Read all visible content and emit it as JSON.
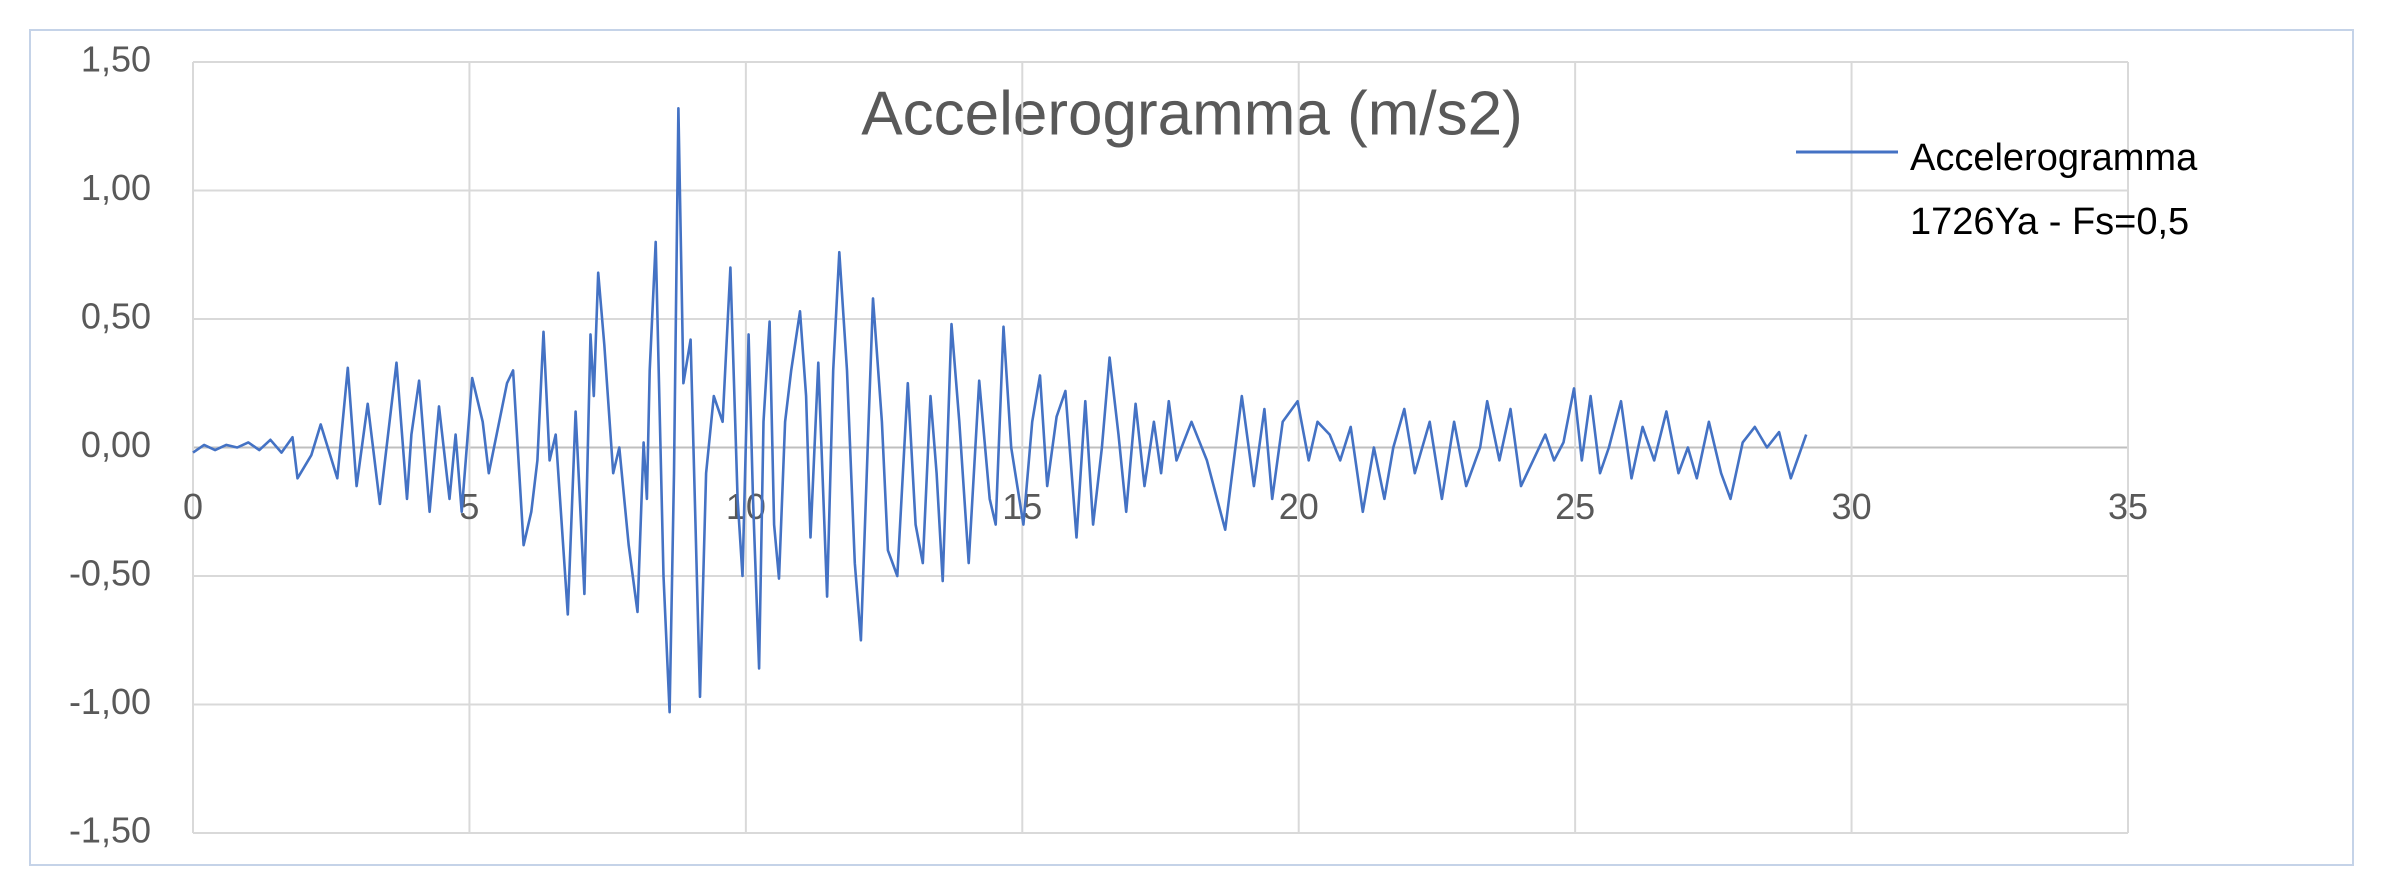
{
  "chart_data": {
    "type": "line",
    "title": "Accelerogramma (m/s2)",
    "legend": "right",
    "grid": true,
    "xlim": [
      0,
      35
    ],
    "xticks": [
      0,
      5,
      10,
      15,
      20,
      25,
      30,
      35
    ],
    "ylim": [
      -1.5,
      1.5
    ],
    "yticks": [
      {
        "value": -1.5,
        "label": "-1,50"
      },
      {
        "value": -1.0,
        "label": "-1,00"
      },
      {
        "value": -0.5,
        "label": "-0,50"
      },
      {
        "value": 0,
        "label": "0,00"
      },
      {
        "value": 0.5,
        "label": "0,50"
      },
      {
        "value": 1.0,
        "label": "1,00"
      },
      {
        "value": 1.5,
        "label": "1,50"
      }
    ],
    "x": [
      0,
      0.2,
      0.4,
      0.6,
      0.8,
      1.0,
      1.2,
      1.4,
      1.6,
      1.8,
      1.89,
      2.14,
      2.31,
      2.61,
      2.8,
      2.96,
      3.16,
      3.38,
      3.68,
      3.87,
      3.95,
      4.09,
      4.28,
      4.45,
      4.64,
      4.75,
      4.86,
      5.05,
      5.24,
      5.35,
      5.68,
      5.79,
      5.98,
      6.12,
      6.23,
      6.34,
      6.45,
      6.56,
      6.78,
      6.92,
      7.08,
      7.19,
      7.25,
      7.33,
      7.44,
      7.6,
      7.71,
      7.88,
      8.04,
      8.15,
      8.21,
      8.26,
      8.37,
      8.51,
      8.62,
      8.7,
      8.78,
      8.87,
      9.0,
      9.09,
      9.17,
      9.28,
      9.42,
      9.58,
      9.72,
      9.85,
      9.94,
      10.05,
      10.13,
      10.24,
      10.32,
      10.43,
      10.51,
      10.6,
      10.71,
      10.82,
      10.98,
      11.09,
      11.17,
      11.31,
      11.47,
      11.58,
      11.69,
      11.83,
      11.97,
      12.08,
      12.22,
      12.3,
      12.46,
      12.57,
      12.74,
      12.93,
      13.07,
      13.2,
      13.34,
      13.45,
      13.56,
      13.72,
      13.86,
      14.03,
      14.22,
      14.41,
      14.52,
      14.66,
      14.8,
      15.02,
      15.18,
      15.32,
      15.45,
      15.62,
      15.78,
      15.98,
      16.14,
      16.28,
      16.44,
      16.58,
      16.74,
      16.88,
      17.05,
      17.21,
      17.38,
      17.51,
      17.65,
      17.79,
      18.06,
      18.34,
      18.67,
      18.97,
      19.19,
      19.38,
      19.52,
      19.71,
      19.98,
      20.18,
      20.34,
      20.56,
      20.75,
      20.94,
      21.16,
      21.36,
      21.55,
      21.71,
      21.91,
      22.1,
      22.37,
      22.59,
      22.81,
      23.03,
      23.28,
      23.41,
      23.63,
      23.83,
      24.02,
      24.24,
      24.46,
      24.62,
      24.79,
      24.98,
      25.12,
      25.28,
      25.45,
      25.61,
      25.83,
      26.02,
      26.22,
      26.43,
      26.65,
      26.87,
      27.04,
      27.2,
      27.42,
      27.64,
      27.81,
      28.03,
      28.25,
      28.47,
      28.69,
      28.9,
      29.18
    ],
    "series": [
      {
        "name": "Accelerogramma 1726Ya - Fs=0,5",
        "color": "#4472c4",
        "values": [
          -0.02,
          0.01,
          -0.01,
          0.01,
          0.0,
          0.02,
          -0.01,
          0.03,
          -0.02,
          0.04,
          -0.12,
          -0.03,
          0.09,
          -0.12,
          0.31,
          -0.15,
          0.17,
          -0.22,
          0.33,
          -0.2,
          0.05,
          0.26,
          -0.25,
          0.16,
          -0.2,
          0.05,
          -0.25,
          0.27,
          0.1,
          -0.1,
          0.25,
          0.3,
          -0.38,
          -0.25,
          -0.05,
          0.45,
          -0.05,
          0.05,
          -0.65,
          0.14,
          -0.57,
          0.44,
          0.2,
          0.68,
          0.4,
          -0.1,
          0.0,
          -0.38,
          -0.64,
          0.02,
          -0.2,
          0.3,
          0.8,
          -0.5,
          -1.03,
          -0.1,
          1.32,
          0.25,
          0.42,
          -0.3,
          -0.97,
          -0.1,
          0.2,
          0.1,
          0.7,
          -0.2,
          -0.5,
          0.44,
          -0.2,
          -0.86,
          0.1,
          0.49,
          -0.3,
          -0.51,
          0.1,
          0.3,
          0.53,
          0.2,
          -0.35,
          0.33,
          -0.58,
          0.3,
          0.76,
          0.3,
          -0.45,
          -0.75,
          0.1,
          0.58,
          0.1,
          -0.4,
          -0.5,
          0.25,
          -0.3,
          -0.45,
          0.2,
          -0.1,
          -0.52,
          0.48,
          0.1,
          -0.45,
          0.26,
          -0.2,
          -0.3,
          0.47,
          0.0,
          -0.3,
          0.1,
          0.28,
          -0.15,
          0.12,
          0.22,
          -0.35,
          0.18,
          -0.3,
          0.0,
          0.35,
          0.05,
          -0.25,
          0.17,
          -0.15,
          0.1,
          -0.1,
          0.18,
          -0.05,
          0.1,
          -0.05,
          -0.32,
          0.2,
          -0.15,
          0.15,
          -0.2,
          0.1,
          0.18,
          -0.05,
          0.1,
          0.05,
          -0.05,
          0.08,
          -0.25,
          0.0,
          -0.2,
          0.0,
          0.15,
          -0.1,
          0.1,
          -0.2,
          0.1,
          -0.15,
          0.0,
          0.18,
          -0.05,
          0.15,
          -0.15,
          -0.05,
          0.05,
          -0.05,
          0.02,
          0.23,
          -0.05,
          0.2,
          -0.1,
          0.0,
          0.18,
          -0.12,
          0.08,
          -0.05,
          0.14,
          -0.1,
          0.0,
          -0.12,
          0.1,
          -0.1,
          -0.2,
          0.02,
          0.08,
          0.0,
          0.06,
          -0.12,
          0.05
        ]
      }
    ]
  }
}
